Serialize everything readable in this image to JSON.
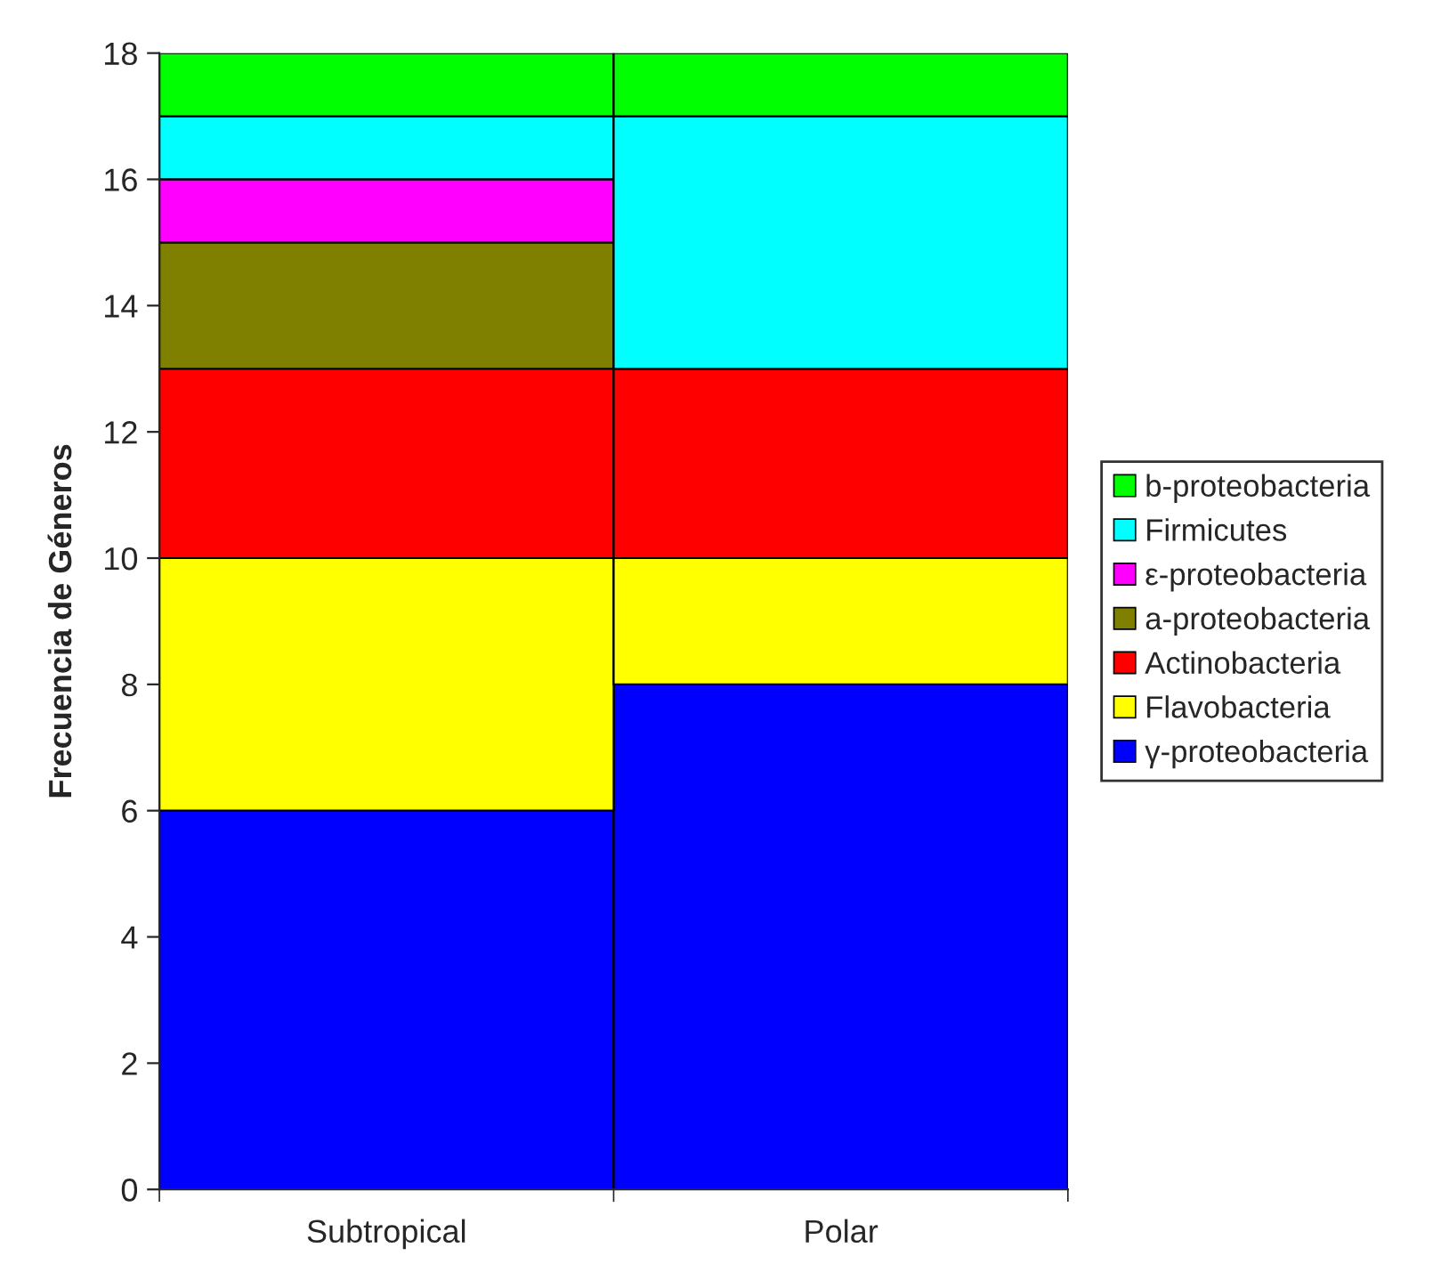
{
  "chart_data": {
    "type": "bar",
    "stacked": true,
    "ylabel": "Frecuencia de Géneros",
    "categories": [
      "Subtropical",
      "Polar"
    ],
    "ylim": [
      0,
      18
    ],
    "yticks": [
      0,
      2,
      4,
      6,
      8,
      10,
      12,
      14,
      16,
      18
    ],
    "grid": false,
    "legend": "right",
    "series": [
      {
        "name": "γ-proteobacteria",
        "color": "#0000ff",
        "values": [
          6,
          8
        ]
      },
      {
        "name": "Flavobacteria",
        "color": "#ffff00",
        "values": [
          4,
          2
        ]
      },
      {
        "name": "Actinobacteria",
        "color": "#ff0000",
        "values": [
          3,
          3
        ]
      },
      {
        "name": "a-proteobacteria",
        "color": "#808000",
        "values": [
          2,
          0
        ]
      },
      {
        "name": "ε-proteobacteria",
        "color": "#ff00ff",
        "values": [
          1,
          0
        ]
      },
      {
        "name": "Firmicutes",
        "color": "#00ffff",
        "values": [
          1,
          4
        ]
      },
      {
        "name": "b-proteobacteria",
        "color": "#00ff00",
        "values": [
          1,
          1
        ]
      }
    ]
  }
}
